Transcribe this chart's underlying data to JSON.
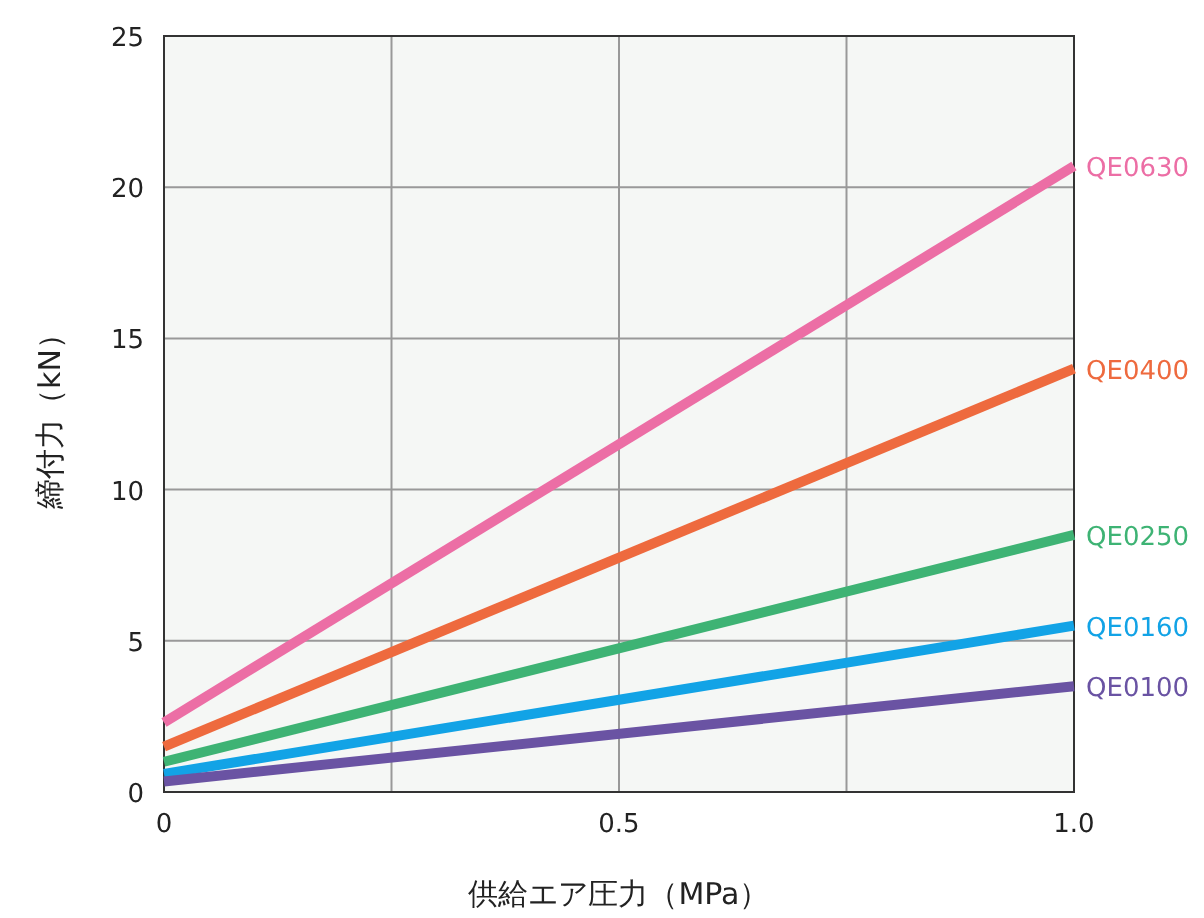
{
  "chart_data": {
    "type": "line",
    "xlabel": "供給エア圧力（MPa）",
    "ylabel": "締付力（kN）",
    "x": [
      0,
      1
    ],
    "series": [
      {
        "name": "QE0630",
        "color": "#ec6ea5",
        "values": [
          2.3,
          20.7
        ]
      },
      {
        "name": "QE0400",
        "color": "#ee6a3e",
        "values": [
          1.5,
          14.0
        ]
      },
      {
        "name": "QE0250",
        "color": "#3eb374",
        "values": [
          1.0,
          8.5
        ]
      },
      {
        "name": "QE0160",
        "color": "#12a3e6",
        "values": [
          0.6,
          5.5
        ]
      },
      {
        "name": "QE0100",
        "color": "#6a53a3",
        "values": [
          0.35,
          3.5
        ]
      }
    ],
    "xlim": [
      0,
      1
    ],
    "ylim": [
      0,
      25
    ],
    "xticks": [
      0,
      {
        "value": 0.25,
        "label": null
      },
      0.5,
      {
        "value": 0.75,
        "label": null
      },
      {
        "value": 1,
        "label": "1.0"
      }
    ],
    "yticks": [
      0,
      5,
      10,
      15,
      20,
      25
    ],
    "grid": true,
    "legend": "right",
    "marker": "none",
    "line_style": "solid"
  }
}
